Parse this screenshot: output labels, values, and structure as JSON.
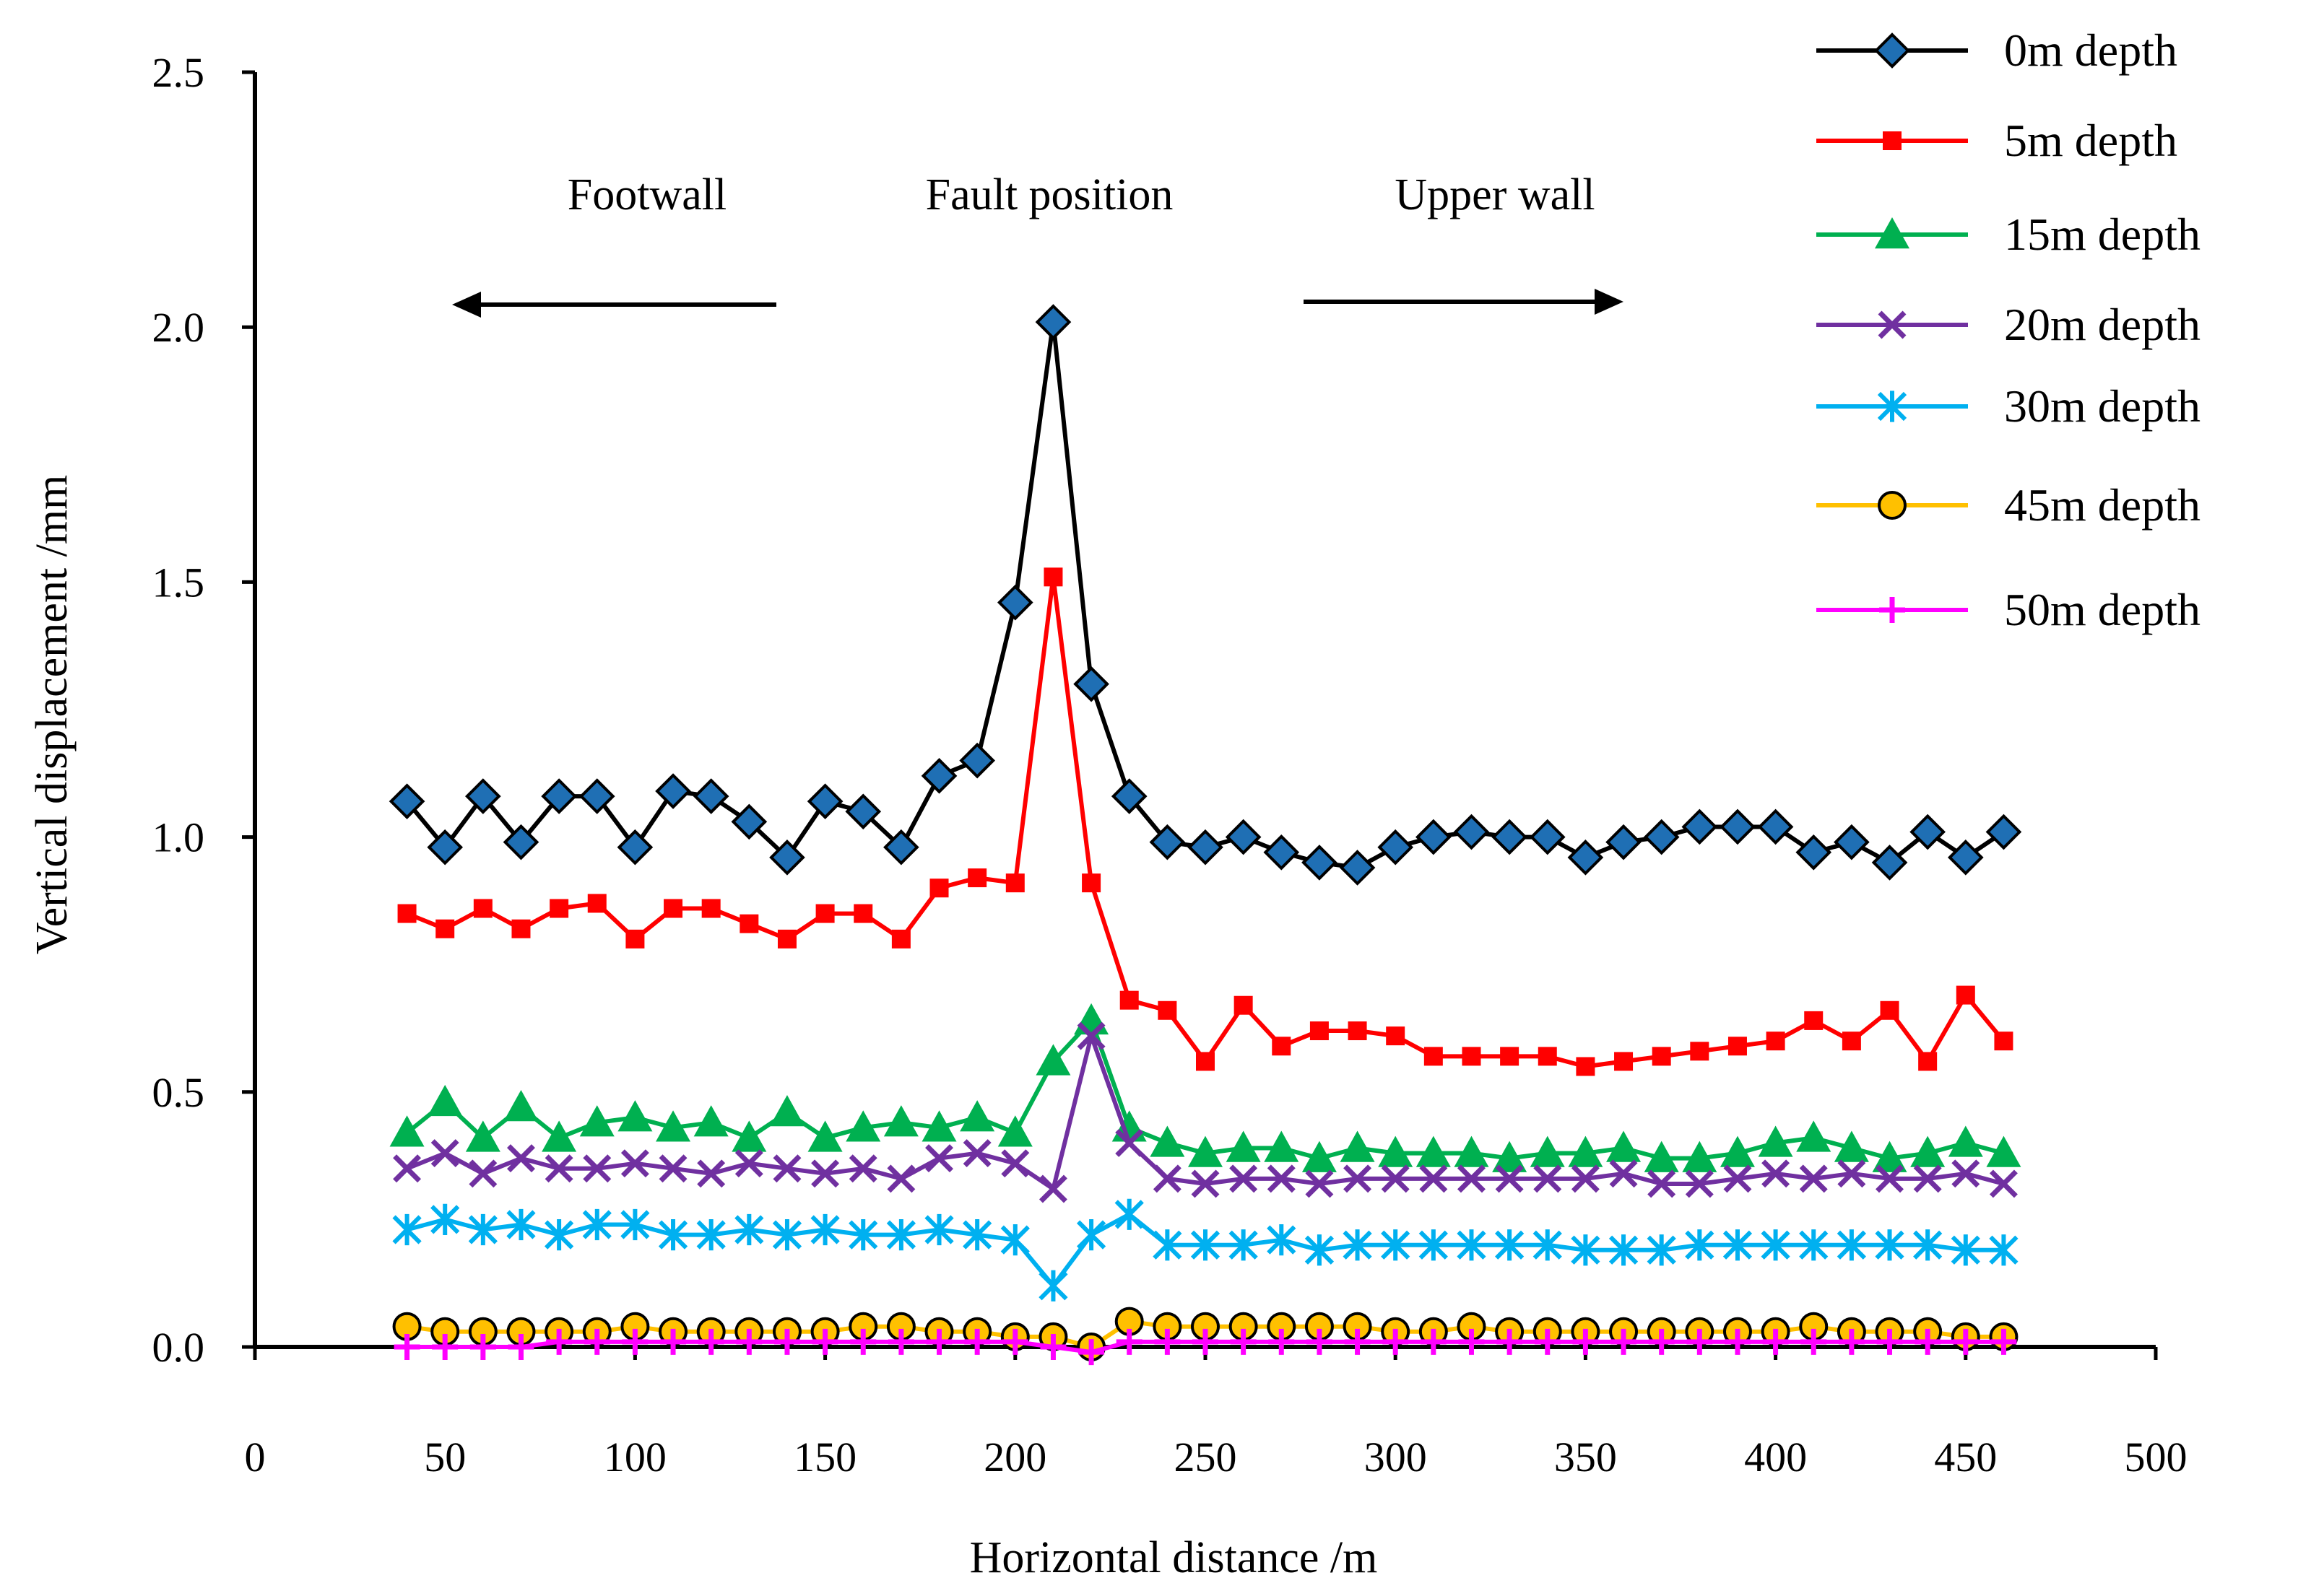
{
  "chart_data": {
    "type": "line",
    "title": "",
    "xlabel": "Horizontal distance /m",
    "ylabel": "Vertical displacement /mm",
    "xlim": [
      0,
      500
    ],
    "ylim": [
      0.0,
      2.5
    ],
    "xticks": [
      0,
      50,
      100,
      150,
      200,
      250,
      300,
      350,
      400,
      450,
      500
    ],
    "xtick_labels": [
      "0",
      "50",
      "100",
      "150",
      "200",
      "250",
      "300",
      "350",
      "400",
      "450",
      "500"
    ],
    "yticks": [
      0.0,
      0.5,
      1.0,
      1.5,
      2.0,
      2.5
    ],
    "ytick_labels": [
      "0.0",
      "0.5",
      "1.0",
      "1.5",
      "2.0",
      "2.5"
    ],
    "grid": false,
    "legend_position": "top-right",
    "annotations": {
      "footwall": "Footwall",
      "fault": "Fault position",
      "upper": "Upper wall"
    },
    "x": [
      40,
      50,
      60,
      70,
      80,
      90,
      100,
      110,
      120,
      130,
      140,
      150,
      160,
      170,
      180,
      190,
      200,
      210,
      220,
      230,
      240,
      250,
      260,
      270,
      280,
      290,
      300,
      310,
      320,
      330,
      340,
      350,
      360,
      370,
      380,
      390,
      400,
      410,
      420,
      430,
      440,
      450,
      460
    ],
    "series": [
      {
        "name": "0m depth",
        "color": "#000000",
        "marker": "diamond",
        "marker_fill": "#1f6fb4",
        "values": [
          1.07,
          0.98,
          1.08,
          0.99,
          1.08,
          1.08,
          0.98,
          1.09,
          1.08,
          1.03,
          0.96,
          1.07,
          1.05,
          0.98,
          1.12,
          1.15,
          1.46,
          2.01,
          1.3,
          1.08,
          0.99,
          0.98,
          1.0,
          0.97,
          0.95,
          0.94,
          0.98,
          1.0,
          1.01,
          1.0,
          1.0,
          0.96,
          0.99,
          1.0,
          1.02,
          1.02,
          1.02,
          0.97,
          0.99,
          0.95,
          1.01,
          0.96,
          1.01
        ]
      },
      {
        "name": "5m depth",
        "color": "#ff0000",
        "marker": "square",
        "marker_fill": "#ff0000",
        "values": [
          0.85,
          0.82,
          0.86,
          0.82,
          0.86,
          0.87,
          0.8,
          0.86,
          0.86,
          0.83,
          0.8,
          0.85,
          0.85,
          0.8,
          0.9,
          0.92,
          0.91,
          1.51,
          0.91,
          0.68,
          0.66,
          0.56,
          0.67,
          0.59,
          0.62,
          0.62,
          0.61,
          0.57,
          0.57,
          0.57,
          0.57,
          0.55,
          0.56,
          0.57,
          0.58,
          0.59,
          0.6,
          0.64,
          0.6,
          0.66,
          0.56,
          0.69,
          0.6
        ]
      },
      {
        "name": "15m depth",
        "color": "#00b050",
        "marker": "triangle",
        "marker_fill": "#00b050",
        "values": [
          0.42,
          0.48,
          0.41,
          0.47,
          0.41,
          0.44,
          0.45,
          0.43,
          0.44,
          0.41,
          0.46,
          0.41,
          0.43,
          0.44,
          0.43,
          0.45,
          0.42,
          0.56,
          0.64,
          0.43,
          0.4,
          0.38,
          0.39,
          0.39,
          0.37,
          0.39,
          0.38,
          0.38,
          0.38,
          0.37,
          0.38,
          0.38,
          0.39,
          0.37,
          0.37,
          0.38,
          0.4,
          0.41,
          0.39,
          0.37,
          0.38,
          0.4,
          0.38
        ]
      },
      {
        "name": "20m depth",
        "color": "#7030a0",
        "marker": "x",
        "marker_fill": "#7030a0",
        "values": [
          0.35,
          0.38,
          0.34,
          0.37,
          0.35,
          0.35,
          0.36,
          0.35,
          0.34,
          0.36,
          0.35,
          0.34,
          0.35,
          0.33,
          0.37,
          0.38,
          0.36,
          0.31,
          0.61,
          0.4,
          0.33,
          0.32,
          0.33,
          0.33,
          0.32,
          0.33,
          0.33,
          0.33,
          0.33,
          0.33,
          0.33,
          0.33,
          0.34,
          0.32,
          0.32,
          0.33,
          0.34,
          0.33,
          0.34,
          0.33,
          0.33,
          0.34,
          0.32
        ]
      },
      {
        "name": "30m depth",
        "color": "#00b0f0",
        "marker": "star",
        "marker_fill": "#00b0f0",
        "values": [
          0.23,
          0.25,
          0.23,
          0.24,
          0.22,
          0.24,
          0.24,
          0.22,
          0.22,
          0.23,
          0.22,
          0.23,
          0.22,
          0.22,
          0.23,
          0.22,
          0.21,
          0.12,
          0.22,
          0.26,
          0.2,
          0.2,
          0.2,
          0.21,
          0.19,
          0.2,
          0.2,
          0.2,
          0.2,
          0.2,
          0.2,
          0.19,
          0.19,
          0.19,
          0.2,
          0.2,
          0.2,
          0.2,
          0.2,
          0.2,
          0.2,
          0.19,
          0.19
        ]
      },
      {
        "name": "45m depth",
        "color": "#ffc000",
        "marker": "circle",
        "marker_fill": "#ffc000",
        "values": [
          0.04,
          0.03,
          0.03,
          0.03,
          0.03,
          0.03,
          0.04,
          0.03,
          0.03,
          0.03,
          0.03,
          0.03,
          0.04,
          0.04,
          0.03,
          0.03,
          0.02,
          0.02,
          0.0,
          0.05,
          0.04,
          0.04,
          0.04,
          0.04,
          0.04,
          0.04,
          0.03,
          0.03,
          0.04,
          0.03,
          0.03,
          0.03,
          0.03,
          0.03,
          0.03,
          0.03,
          0.03,
          0.04,
          0.03,
          0.03,
          0.03,
          0.02,
          0.02
        ]
      },
      {
        "name": "50m depth",
        "color": "#ff00ff",
        "marker": "plus",
        "marker_fill": "#ff00ff",
        "values": [
          0.0,
          0.0,
          0.0,
          0.0,
          0.01,
          0.01,
          0.01,
          0.01,
          0.01,
          0.01,
          0.01,
          0.01,
          0.01,
          0.01,
          0.01,
          0.01,
          0.01,
          0.0,
          -0.01,
          0.01,
          0.01,
          0.01,
          0.01,
          0.01,
          0.01,
          0.01,
          0.01,
          0.01,
          0.01,
          0.01,
          0.01,
          0.01,
          0.01,
          0.01,
          0.01,
          0.01,
          0.01,
          0.01,
          0.01,
          0.01,
          0.01,
          0.01,
          0.01
        ]
      }
    ]
  }
}
